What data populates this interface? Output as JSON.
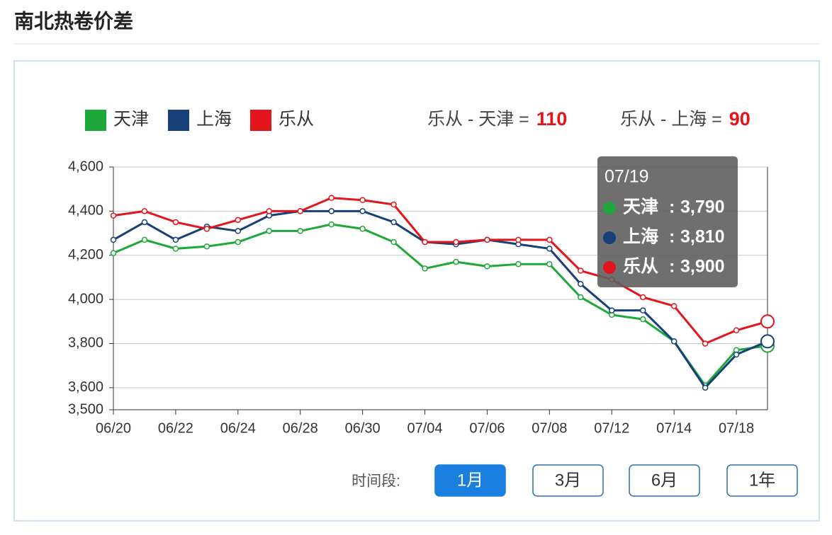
{
  "header": {
    "title": "南北热卷价差"
  },
  "chart_data": {
    "type": "line",
    "categories": [
      "06/20",
      null,
      "06/22",
      null,
      "06/24",
      null,
      "06/28",
      null,
      "06/30",
      null,
      "07/04",
      null,
      "07/06",
      null,
      "07/08",
      null,
      "07/12",
      null,
      "07/14",
      null,
      "07/18",
      null
    ],
    "series": [
      {
        "name": "天津",
        "color": "#1fa83a",
        "values": [
          4210,
          4270,
          4230,
          4240,
          4260,
          4310,
          4310,
          4340,
          4320,
          4260,
          4140,
          4170,
          4150,
          4160,
          4160,
          4010,
          3930,
          3910,
          3810,
          3610,
          3770,
          3790
        ]
      },
      {
        "name": "上海",
        "color": "#173f78",
        "values": [
          4270,
          4350,
          4270,
          4330,
          4310,
          4380,
          4400,
          4400,
          4400,
          4350,
          4260,
          4250,
          4270,
          4250,
          4230,
          4070,
          3950,
          3950,
          3810,
          3600,
          3750,
          3810
        ]
      },
      {
        "name": "乐从",
        "color": "#e4141b",
        "values": [
          4380,
          4400,
          4350,
          4320,
          4360,
          4400,
          4400,
          4460,
          4450,
          4430,
          4260,
          4260,
          4270,
          4270,
          4270,
          4130,
          4090,
          4010,
          3970,
          3800,
          3860,
          3900
        ]
      }
    ],
    "ylim": [
      3500,
      4600
    ],
    "yticks": [
      {
        "value": 3500,
        "label": "3,500"
      },
      {
        "value": 3600,
        "label": "3,600"
      },
      {
        "value": 3800,
        "label": "3,800"
      },
      {
        "value": 4000,
        "label": "4,000"
      },
      {
        "value": 4200,
        "label": "4,200"
      },
      {
        "value": 4400,
        "label": "4,400"
      },
      {
        "value": 4600,
        "label": "4,600"
      }
    ],
    "grid": true,
    "spreads": [
      {
        "label": "乐从 - 天津 =",
        "value": 110
      },
      {
        "label": "乐从 - 上海 =",
        "value": 90
      }
    ],
    "tooltip": {
      "title": "07/19",
      "separator": ":",
      "labels": [
        "3,790",
        "3,810",
        "3,900"
      ]
    }
  },
  "controls": {
    "label": "时间段:",
    "buttons": [
      "1月",
      "3月",
      "6月",
      "1年"
    ],
    "active": 0
  }
}
